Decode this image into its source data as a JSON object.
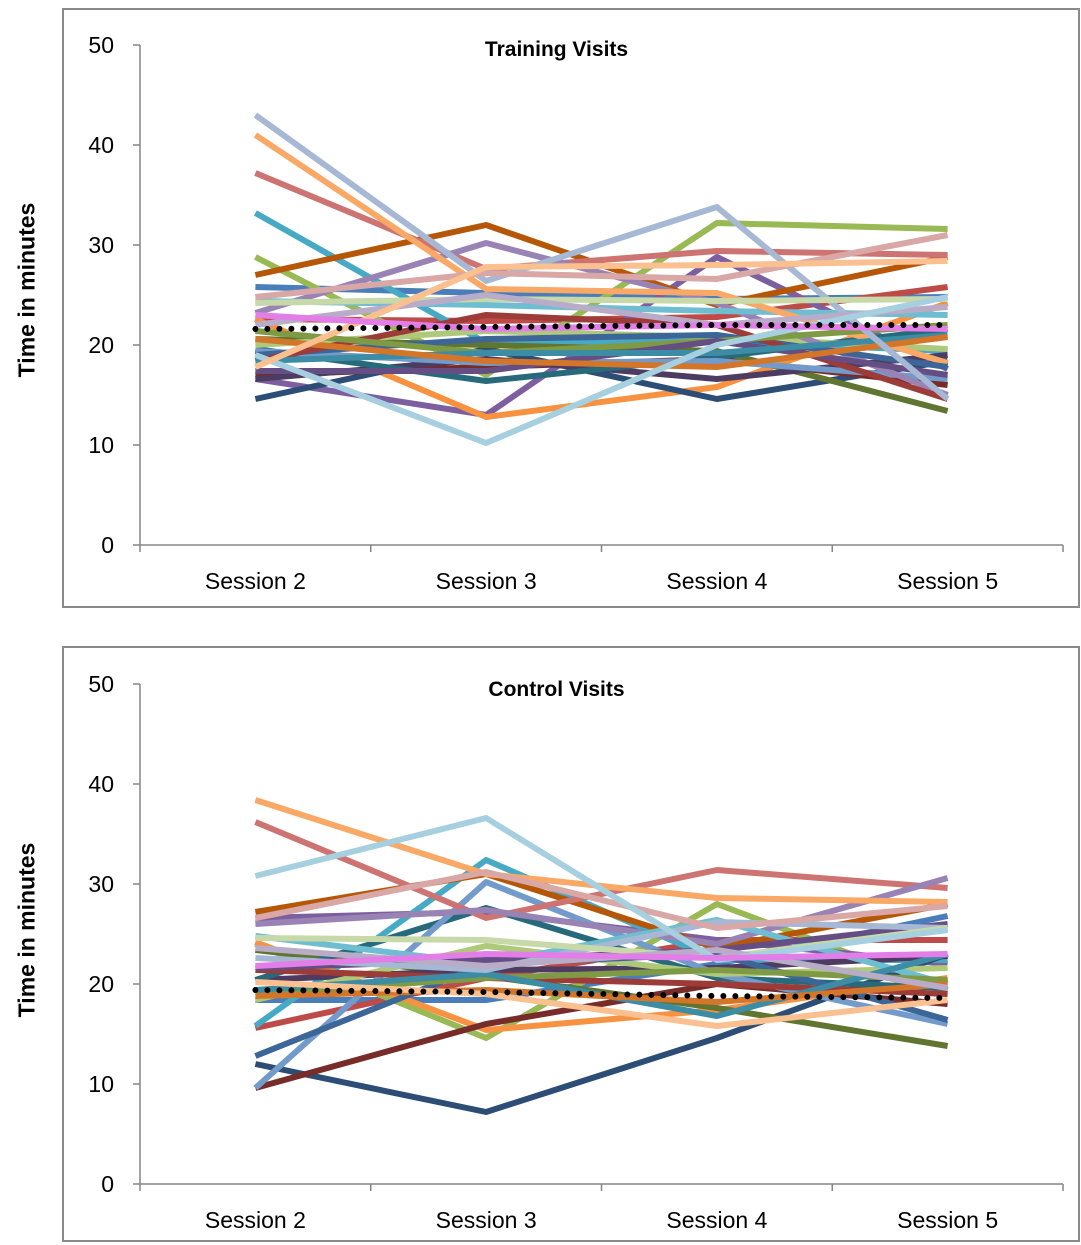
{
  "chart_data": [
    {
      "type": "line",
      "title": "Training Visits",
      "xlabel": "",
      "ylabel": "Time in minutes",
      "categories": [
        "Session 2",
        "Session 3",
        "Session 4",
        "Session 5"
      ],
      "ylim": [
        0,
        50
      ],
      "yticks": [
        0,
        10,
        20,
        30,
        40,
        50
      ],
      "grid": false,
      "legend": "none",
      "series": [
        {
          "color": "#4a7ebb",
          "values": [
            25.8,
            25.2,
            24.6,
            24.8
          ]
        },
        {
          "color": "#be4b48",
          "values": [
            22.6,
            22.4,
            22.8,
            25.8
          ]
        },
        {
          "color": "#98b954",
          "values": [
            28.8,
            17.0,
            32.2,
            31.6
          ]
        },
        {
          "color": "#7d5fa0",
          "values": [
            16.6,
            13.0,
            28.8,
            17.6
          ]
        },
        {
          "color": "#46aac5",
          "values": [
            33.2,
            20.2,
            20.4,
            19.4
          ]
        },
        {
          "color": "#f69240",
          "values": [
            22.6,
            12.8,
            15.8,
            24.2
          ]
        },
        {
          "color": "#2c4d75",
          "values": [
            14.6,
            19.6,
            14.6,
            18.4
          ]
        },
        {
          "color": "#772c2a",
          "values": [
            17.0,
            17.8,
            18.6,
            16.0
          ]
        },
        {
          "color": "#5f7530",
          "values": [
            20.6,
            20.0,
            19.4,
            13.4
          ]
        },
        {
          "color": "#4d3b62",
          "values": [
            16.6,
            18.6,
            16.6,
            19.0
          ]
        },
        {
          "color": "#276a7c",
          "values": [
            19.6,
            16.4,
            18.8,
            21.6
          ]
        },
        {
          "color": "#b65708",
          "values": [
            27.0,
            32.0,
            24.0,
            28.8
          ]
        },
        {
          "color": "#729aca",
          "values": [
            19.4,
            18.2,
            18.4,
            16.6
          ]
        },
        {
          "color": "#cd7371",
          "values": [
            37.2,
            27.6,
            29.4,
            29.0
          ]
        },
        {
          "color": "#afc97a",
          "values": [
            20.0,
            21.4,
            20.8,
            19.6
          ]
        },
        {
          "color": "#9983b5",
          "values": [
            23.2,
            30.2,
            24.2,
            15.0
          ]
        },
        {
          "color": "#6fbdd1",
          "values": [
            24.4,
            24.0,
            23.4,
            23.0
          ]
        },
        {
          "color": "#f9a866",
          "values": [
            41.0,
            25.6,
            25.2,
            18.2
          ]
        },
        {
          "color": "#3c6598",
          "values": [
            19.0,
            20.6,
            21.0,
            17.8
          ]
        },
        {
          "color": "#9c3b38",
          "values": [
            18.4,
            23.0,
            22.0,
            14.6
          ]
        },
        {
          "color": "#7e9a44",
          "values": [
            21.4,
            19.2,
            20.4,
            22.0
          ]
        },
        {
          "color": "#654e83",
          "values": [
            17.4,
            17.4,
            20.4,
            17.0
          ]
        },
        {
          "color": "#3b8ca4",
          "values": [
            18.4,
            19.2,
            19.2,
            21.0
          ]
        },
        {
          "color": "#d47629",
          "values": [
            20.6,
            18.4,
            17.8,
            20.8
          ]
        },
        {
          "color": "#a7b8d4",
          "values": [
            43.0,
            26.4,
            33.8,
            14.6
          ]
        },
        {
          "color": "#d8a7a6",
          "values": [
            24.8,
            27.2,
            26.6,
            31.0
          ]
        },
        {
          "color": "#c8d9a9",
          "values": [
            24.2,
            24.6,
            24.4,
            24.6
          ]
        },
        {
          "color": "#b9acc8",
          "values": [
            22.0,
            25.0,
            22.0,
            23.8
          ]
        },
        {
          "color": "#a6cfdf",
          "values": [
            19.0,
            10.2,
            20.0,
            24.8
          ]
        },
        {
          "color": "#fac090",
          "values": [
            17.8,
            27.8,
            28.0,
            28.4
          ]
        },
        {
          "color": "#e37de8",
          "values": [
            23.0,
            21.6,
            22.0,
            21.6
          ]
        },
        {
          "name": "",
          "color": "#000000",
          "dotted": true,
          "values": [
            21.6,
            21.8,
            22.0,
            22.0
          ]
        }
      ]
    },
    {
      "type": "line",
      "title": "Control Visits",
      "xlabel": "",
      "ylabel": "Time in minutes",
      "categories": [
        "Session 2",
        "Session 3",
        "Session 4",
        "Session 5"
      ],
      "ylim": [
        0,
        50
      ],
      "yticks": [
        0,
        10,
        20,
        30,
        40,
        50
      ],
      "grid": false,
      "legend": "none",
      "series": [
        {
          "color": "#4a7ebb",
          "values": [
            18.4,
            18.4,
            22.0,
            26.8
          ]
        },
        {
          "color": "#be4b48",
          "values": [
            15.6,
            20.6,
            24.4,
            24.4
          ]
        },
        {
          "color": "#98b954",
          "values": [
            24.0,
            14.6,
            28.0,
            19.4
          ]
        },
        {
          "color": "#7d5fa0",
          "values": [
            26.6,
            27.2,
            24.4,
            22.0
          ]
        },
        {
          "color": "#46aac5",
          "values": [
            15.8,
            32.4,
            22.4,
            22.4
          ]
        },
        {
          "color": "#f69240",
          "values": [
            24.2,
            15.4,
            17.4,
            20.6
          ]
        },
        {
          "color": "#2c4d75",
          "values": [
            12.0,
            7.2,
            14.6,
            23.0
          ]
        },
        {
          "color": "#772c2a",
          "values": [
            9.6,
            16.0,
            20.0,
            18.0
          ]
        },
        {
          "color": "#5f7530",
          "values": [
            23.4,
            20.8,
            17.6,
            13.8
          ]
        },
        {
          "color": "#4d3b62",
          "values": [
            20.4,
            21.4,
            21.6,
            22.8
          ]
        },
        {
          "color": "#276a7c",
          "values": [
            20.4,
            27.6,
            20.6,
            19.6
          ]
        },
        {
          "color": "#b65708",
          "values": [
            27.2,
            31.0,
            23.6,
            28.0
          ]
        },
        {
          "color": "#729aca",
          "values": [
            9.6,
            30.2,
            21.0,
            16.0
          ]
        },
        {
          "color": "#cd7371",
          "values": [
            36.2,
            26.6,
            31.4,
            29.6
          ]
        },
        {
          "color": "#afc97a",
          "values": [
            18.4,
            23.8,
            21.0,
            21.6
          ]
        },
        {
          "color": "#9983b5",
          "values": [
            26.0,
            27.4,
            24.0,
            30.6
          ]
        },
        {
          "color": "#6fbdd1",
          "values": [
            24.8,
            22.0,
            26.4,
            20.0
          ]
        },
        {
          "color": "#f9a866",
          "values": [
            38.4,
            31.0,
            28.6,
            28.2
          ]
        },
        {
          "color": "#3c6598",
          "values": [
            12.8,
            22.0,
            23.0,
            16.4
          ]
        },
        {
          "color": "#9c3b38",
          "values": [
            21.4,
            20.6,
            20.0,
            19.0
          ]
        },
        {
          "color": "#7e9a44",
          "values": [
            19.0,
            20.6,
            21.4,
            20.4
          ]
        },
        {
          "color": "#654e83",
          "values": [
            21.6,
            22.4,
            23.4,
            26.0
          ]
        },
        {
          "color": "#3b8ca4",
          "values": [
            19.4,
            21.0,
            16.8,
            23.0
          ]
        },
        {
          "color": "#d47629",
          "values": [
            18.8,
            19.4,
            18.2,
            20.0
          ]
        },
        {
          "color": "#a7b8d4",
          "values": [
            22.6,
            21.4,
            26.2,
            25.6
          ]
        },
        {
          "color": "#d8a7a6",
          "values": [
            26.6,
            31.2,
            25.6,
            27.8
          ]
        },
        {
          "color": "#c8d9a9",
          "values": [
            24.6,
            24.4,
            22.6,
            25.6
          ]
        },
        {
          "color": "#b9acc8",
          "values": [
            23.6,
            21.8,
            23.4,
            19.6
          ]
        },
        {
          "color": "#a6cfdf",
          "values": [
            30.8,
            36.6,
            22.4,
            25.4
          ]
        },
        {
          "color": "#fac090",
          "values": [
            20.2,
            19.0,
            15.8,
            18.4
          ]
        },
        {
          "color": "#e37de8",
          "values": [
            21.8,
            23.0,
            22.6,
            23.0
          ]
        },
        {
          "name": "",
          "color": "#000000",
          "dotted": true,
          "values": [
            19.4,
            19.2,
            18.8,
            18.6
          ]
        }
      ]
    }
  ]
}
